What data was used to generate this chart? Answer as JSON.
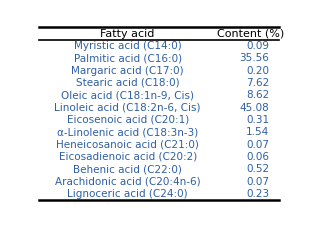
{
  "col1_header": "Fatty acid",
  "col2_header": "Content (%)",
  "rows": [
    [
      "Myristic acid (C14:0)",
      "0.09"
    ],
    [
      "Palmitic acid (C16:0)",
      "35.56"
    ],
    [
      "Margaric acid (C17:0)",
      "0.20"
    ],
    [
      "Stearic acid (C18:0)",
      "7.62"
    ],
    [
      "Oleic acid (C18:1n-9, Cis)",
      "8.62"
    ],
    [
      "Linoleic acid (C18:2n-6, Cis)",
      "45.08"
    ],
    [
      "Eicosenoic acid (C20:1)",
      "0.31"
    ],
    [
      "α-Linolenic acid (C18:3n-3)",
      "1.54"
    ],
    [
      "Heneicosanoic acid (C21:0)",
      "0.07"
    ],
    [
      "Eicosadienoic acid (C20:2)",
      "0.06"
    ],
    [
      "Behenic acid (C22:0)",
      "0.52"
    ],
    [
      "Arachidonic acid (C20:4n-6)",
      "0.07"
    ],
    [
      "Lignoceric acid (C24:0)",
      "0.23"
    ]
  ],
  "text_color": "#2E5FA3",
  "header_color": "#000000",
  "bg_color": "#FFFFFF",
  "font_size": 7.5,
  "header_font_size": 8.0
}
